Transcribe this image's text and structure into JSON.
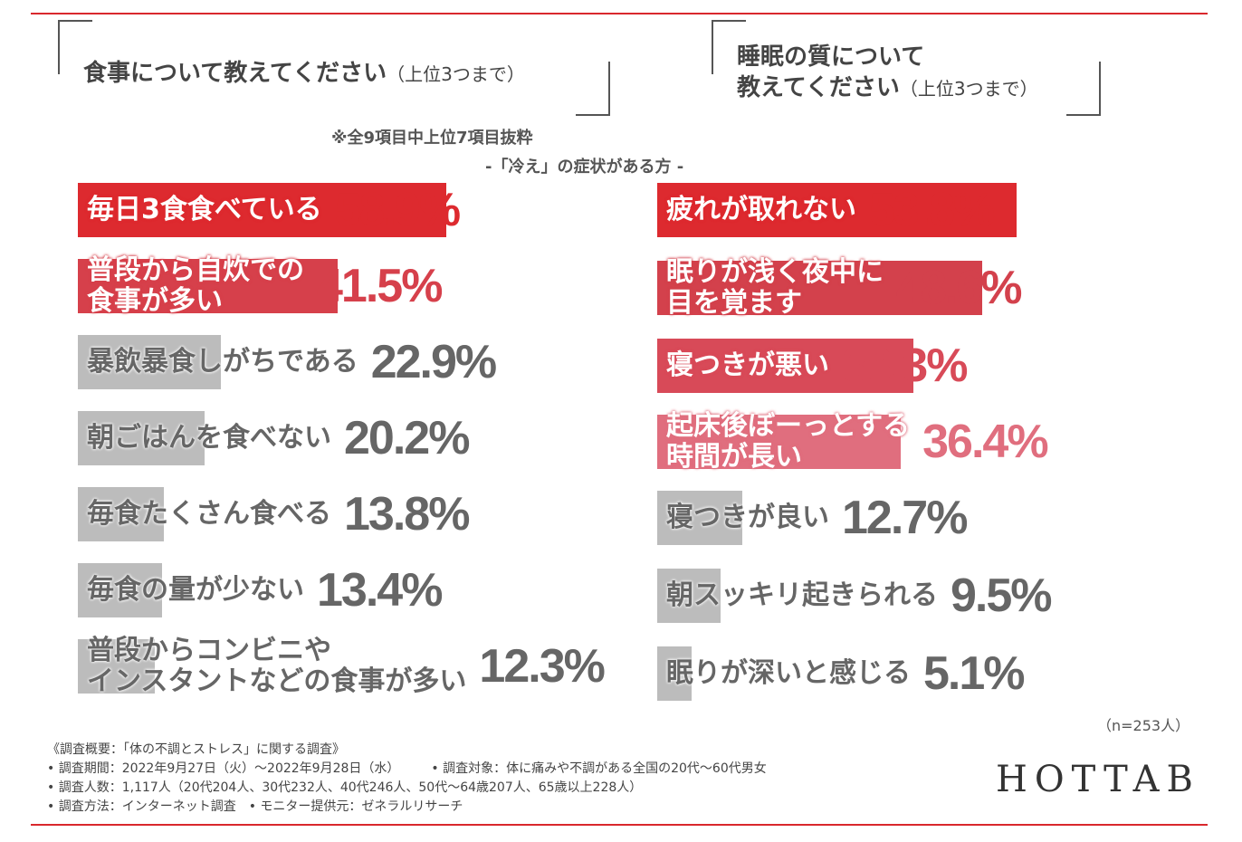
{
  "chart_data": [
    {
      "type": "bar",
      "orientation": "horizontal",
      "title": "食事について教えてください",
      "title_note": "（上位3つまで）",
      "subtitle": "※全9項目中上位7項目抜粋",
      "unit": "%",
      "categories": [
        "毎日3食食べている",
        "普段から自炊での\n食事が多い",
        "暴飲暴食しがちである",
        "朝ごはんを食べない",
        "毎食たくさん食べる",
        "毎食の量が少ない",
        "普段からコンビニや\nインスタントなどの食事が多い"
      ],
      "values": [
        58.9,
        41.5,
        22.9,
        20.2,
        13.8,
        13.4,
        12.3
      ],
      "colors": [
        "#dd2a2f",
        "#d6404b",
        "#bcbcbc",
        "#bcbcbc",
        "#bcbcbc",
        "#bcbcbc",
        "#bcbcbc"
      ]
    },
    {
      "type": "bar",
      "orientation": "horizontal",
      "title": "睡眠の質について\n教えてください",
      "title_note": "（上位3つまで）",
      "unit": "%",
      "categories": [
        "疲れが取れない",
        "眠りが浅く夜中に\n目を覚ます",
        "寝つきが悪い",
        "起床後ぼーっとする\n時間が長い",
        "寝つきが良い",
        "朝スッキリ起きられる",
        "眠りが深いと感じる"
      ],
      "values": [
        53.8,
        48.6,
        38.3,
        36.4,
        12.7,
        9.5,
        5.1
      ],
      "colors": [
        "#dd2a2f",
        "#d3414c",
        "#d84a58",
        "#e06e7e",
        "#bcbcbc",
        "#bcbcbc",
        "#bcbcbc"
      ]
    }
  ],
  "group_label": "-「冷え」の症状がある方 -",
  "sample": "（n=253人）",
  "footer": [
    "《調査概要：「体の不調とストレス」に関する調査》",
    "• 調査期間：2022年9月27日（火）～2022年9月28日（水）　　　• 調査対象：体に痛みや不調がある全国の20代～60代男女",
    "• 調査人数：1,117人（20代204人、30代232人、40代246人、50代～64歳207人、65歳以上228人）",
    "• 調査方法：インターネット調査　• モニター提供元：ゼネラルリサーチ"
  ],
  "logo": "HOTTAB"
}
